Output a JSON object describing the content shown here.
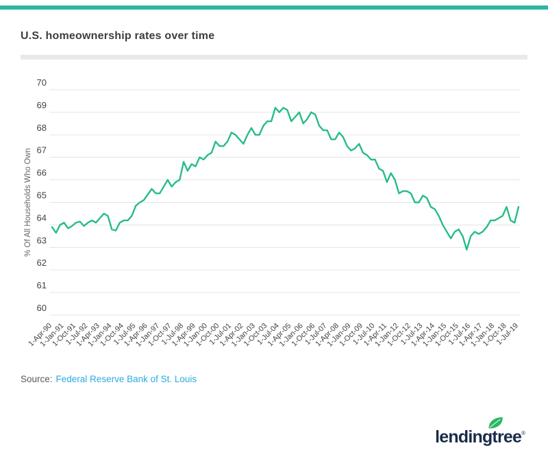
{
  "title": "U.S. homeownership rates over time",
  "accent_bar_color": "#2eb6a4",
  "source": {
    "label": "Source:",
    "link_text": "Federal Reserve Bank of St. Louis",
    "link_color": "#29abe2",
    "label_color": "#55595d"
  },
  "logo": {
    "text": "lendingtree",
    "registered_mark": "®",
    "navy": "#1a2b49",
    "leaf_green": "#2db765",
    "leaf_icon": "leaf-icon"
  },
  "chart_data": {
    "type": "line",
    "title": "",
    "xlabel": "",
    "ylabel": "% Of All Households Who Own",
    "ylim": [
      60,
      70
    ],
    "y_ticks": [
      60,
      61,
      62,
      63,
      64,
      65,
      66,
      67,
      68,
      69,
      70
    ],
    "grid": true,
    "legend": "none",
    "frequency": "quarterly",
    "x_start": "1-Apr-90",
    "x_end": "1-Jul-19",
    "x_tick_every": 3,
    "x_tick_labels": [
      "1-Apr-90",
      "1-Jan-91",
      "1-Oct-91",
      "1-Jul-92",
      "1-Apr-93",
      "1-Jan-94",
      "1-Oct-94",
      "1-Jul-95",
      "1-Apr-96",
      "1-Jan-97",
      "1-Oct-97",
      "1-Jul-98",
      "1-Apr-99",
      "1-Jan-00",
      "1-Oct-00",
      "1-Jul-01",
      "1-Apr-02",
      "1-Jan-03",
      "1-Oct-03",
      "1-Jul-04",
      "1-Apr-05",
      "1-Jan-06",
      "1-Oct-06",
      "1-Jul-07",
      "1-Apr-08",
      "1-Jan-09",
      "1-Oct-09",
      "1-Jul-10",
      "1-Apr-11",
      "1-Jan-12",
      "1-Oct-12",
      "1-Jul-13",
      "1-Apr-14",
      "1-Jan-15",
      "1-Oct-15",
      "1-Jul-16",
      "1-Apr-17",
      "1-Jan-18",
      "1-Oct-18",
      "1-Jul-19"
    ],
    "values": [
      63.9,
      63.65,
      64.0,
      64.1,
      63.85,
      63.95,
      64.1,
      64.15,
      63.95,
      64.1,
      64.2,
      64.1,
      64.3,
      64.5,
      64.4,
      63.8,
      63.75,
      64.1,
      64.2,
      64.2,
      64.4,
      64.85,
      65.0,
      65.1,
      65.35,
      65.6,
      65.4,
      65.4,
      65.7,
      66.0,
      65.7,
      65.9,
      66.0,
      66.8,
      66.4,
      66.7,
      66.6,
      67.0,
      66.9,
      67.1,
      67.2,
      67.7,
      67.5,
      67.5,
      67.7,
      68.1,
      68.0,
      67.8,
      67.6,
      68.0,
      68.3,
      68.0,
      68.0,
      68.4,
      68.6,
      68.6,
      69.2,
      69.0,
      69.2,
      69.1,
      68.6,
      68.8,
      69.0,
      68.5,
      68.7,
      69.0,
      68.9,
      68.4,
      68.2,
      68.2,
      67.8,
      67.8,
      68.1,
      67.9,
      67.5,
      67.3,
      67.4,
      67.6,
      67.2,
      67.1,
      66.9,
      66.9,
      66.5,
      66.4,
      65.9,
      66.3,
      66.0,
      65.4,
      65.5,
      65.5,
      65.4,
      65.0,
      65.0,
      65.3,
      65.2,
      64.8,
      64.7,
      64.4,
      64.0,
      63.7,
      63.4,
      63.7,
      63.8,
      63.5,
      62.9,
      63.5,
      63.7,
      63.6,
      63.7,
      63.9,
      64.2,
      64.2,
      64.3,
      64.4,
      64.8,
      64.2,
      64.1,
      64.8
    ],
    "line_color": "#25bd84",
    "grid_color": "#e4e4e4",
    "tick_label_color": "#3f4347",
    "axis_title_color": "#63676c"
  }
}
